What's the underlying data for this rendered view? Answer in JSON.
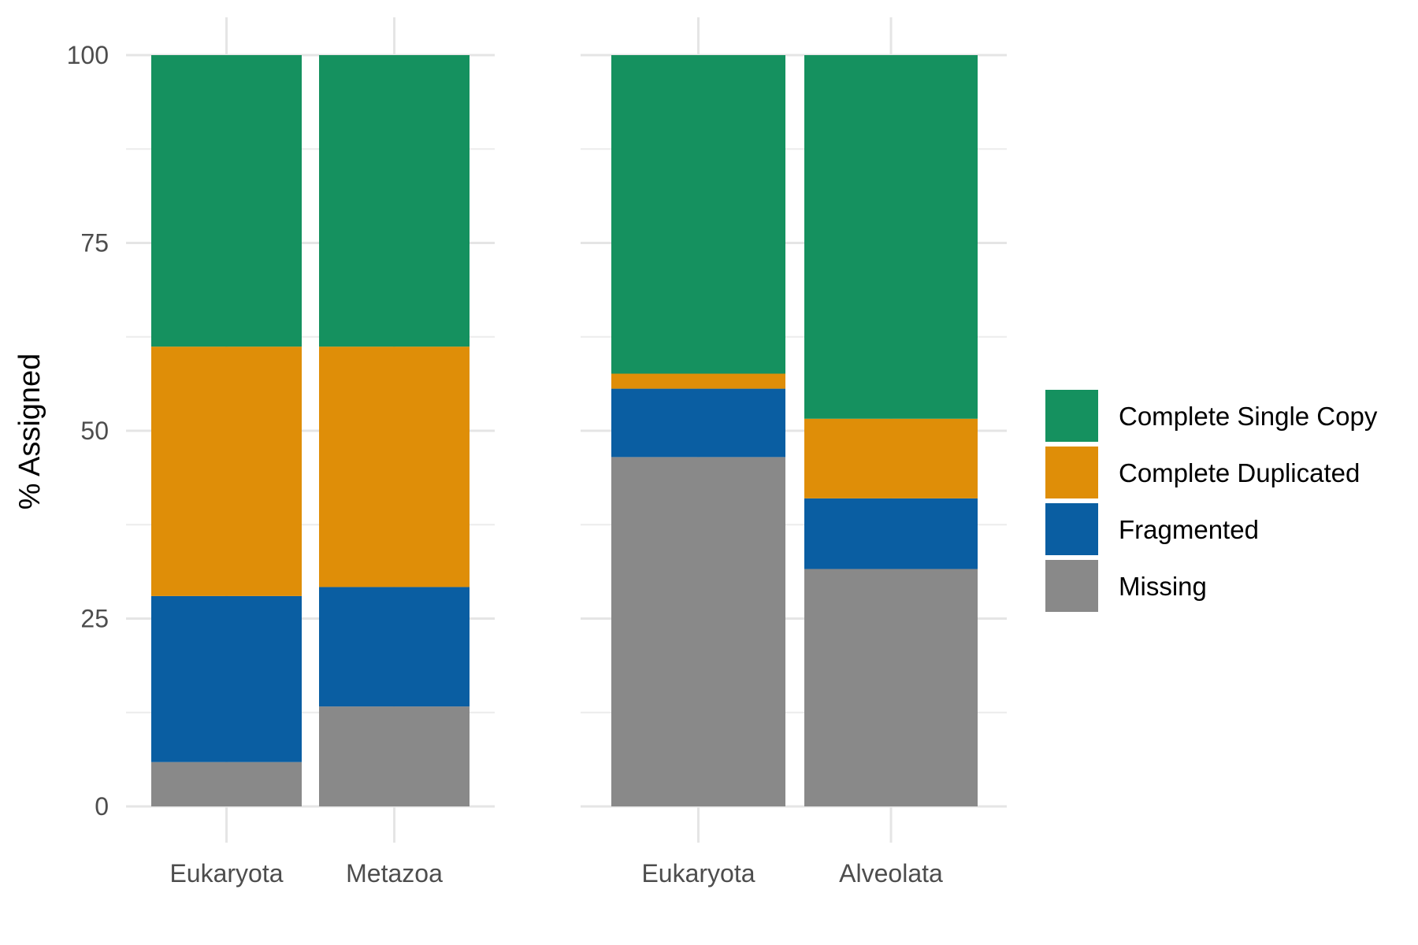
{
  "chart_data": {
    "type": "bar",
    "stacked": true,
    "ylabel": "% Assigned",
    "ylim": [
      0,
      100
    ],
    "yticks": [
      0,
      25,
      50,
      75,
      100
    ],
    "grid": true,
    "legend_position": "right",
    "series_order": [
      "Missing",
      "Fragmented",
      "Complete Duplicated",
      "Complete Single Copy"
    ],
    "legend": [
      {
        "name": "Complete Single Copy",
        "color": "#15915f"
      },
      {
        "name": "Complete Duplicated",
        "color": "#df8e08"
      },
      {
        "name": "Fragmented",
        "color": "#0a5ea2"
      },
      {
        "name": "Missing",
        "color": "#898989"
      }
    ],
    "panels": [
      {
        "categories": [
          "Eukaryota",
          "Metazoa"
        ],
        "series": [
          {
            "name": "Missing",
            "values": [
              5.9,
              13.3
            ]
          },
          {
            "name": "Fragmented",
            "values": [
              22.1,
              15.9
            ]
          },
          {
            "name": "Complete Duplicated",
            "values": [
              33.2,
              32.0
            ]
          },
          {
            "name": "Complete Single Copy",
            "values": [
              38.8,
              38.8
            ]
          }
        ]
      },
      {
        "categories": [
          "Eukaryota",
          "Alveolata"
        ],
        "series": [
          {
            "name": "Missing",
            "values": [
              46.5,
              31.6
            ]
          },
          {
            "name": "Fragmented",
            "values": [
              9.1,
              9.4
            ]
          },
          {
            "name": "Complete Duplicated",
            "values": [
              2.0,
              10.6
            ]
          },
          {
            "name": "Complete Single Copy",
            "values": [
              42.4,
              48.4
            ]
          }
        ]
      }
    ]
  }
}
